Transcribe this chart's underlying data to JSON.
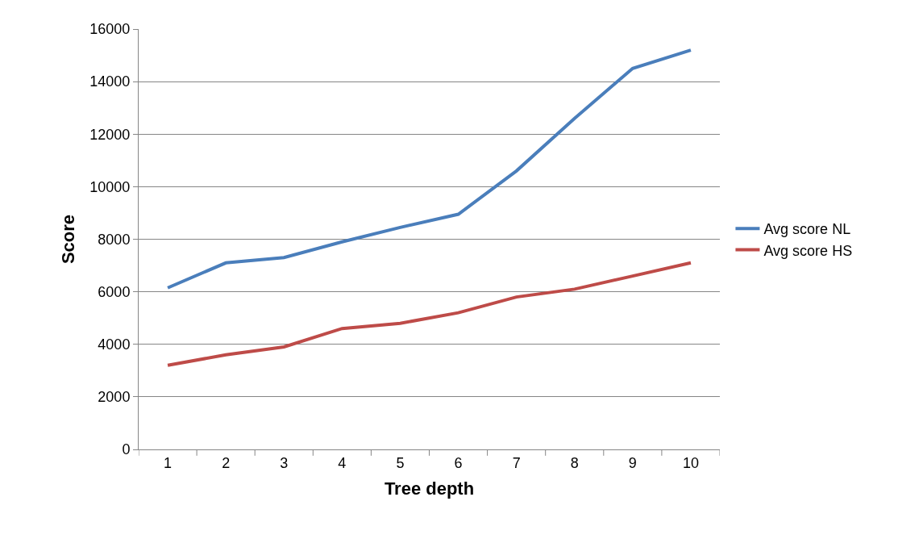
{
  "chart_data": {
    "type": "line",
    "xlabel": "Tree depth",
    "ylabel": "Score",
    "categories": [
      "1",
      "2",
      "3",
      "4",
      "5",
      "6",
      "7",
      "8",
      "9",
      "10"
    ],
    "series": [
      {
        "name": "Avg score NL",
        "color": "#4a7ebb",
        "values": [
          6150,
          7100,
          7300,
          7900,
          8450,
          8950,
          10600,
          12600,
          14500,
          15200
        ]
      },
      {
        "name": "Avg score HS",
        "color": "#be4b48",
        "values": [
          3200,
          3600,
          3900,
          4600,
          4800,
          5200,
          5800,
          6100,
          6600,
          7100
        ]
      }
    ],
    "ylim": [
      0,
      16000
    ],
    "yticks": [
      0,
      2000,
      4000,
      6000,
      8000,
      10000,
      12000,
      14000,
      16000
    ],
    "grid": "y",
    "legend": "right",
    "marker": "none",
    "line_style": "solid"
  }
}
